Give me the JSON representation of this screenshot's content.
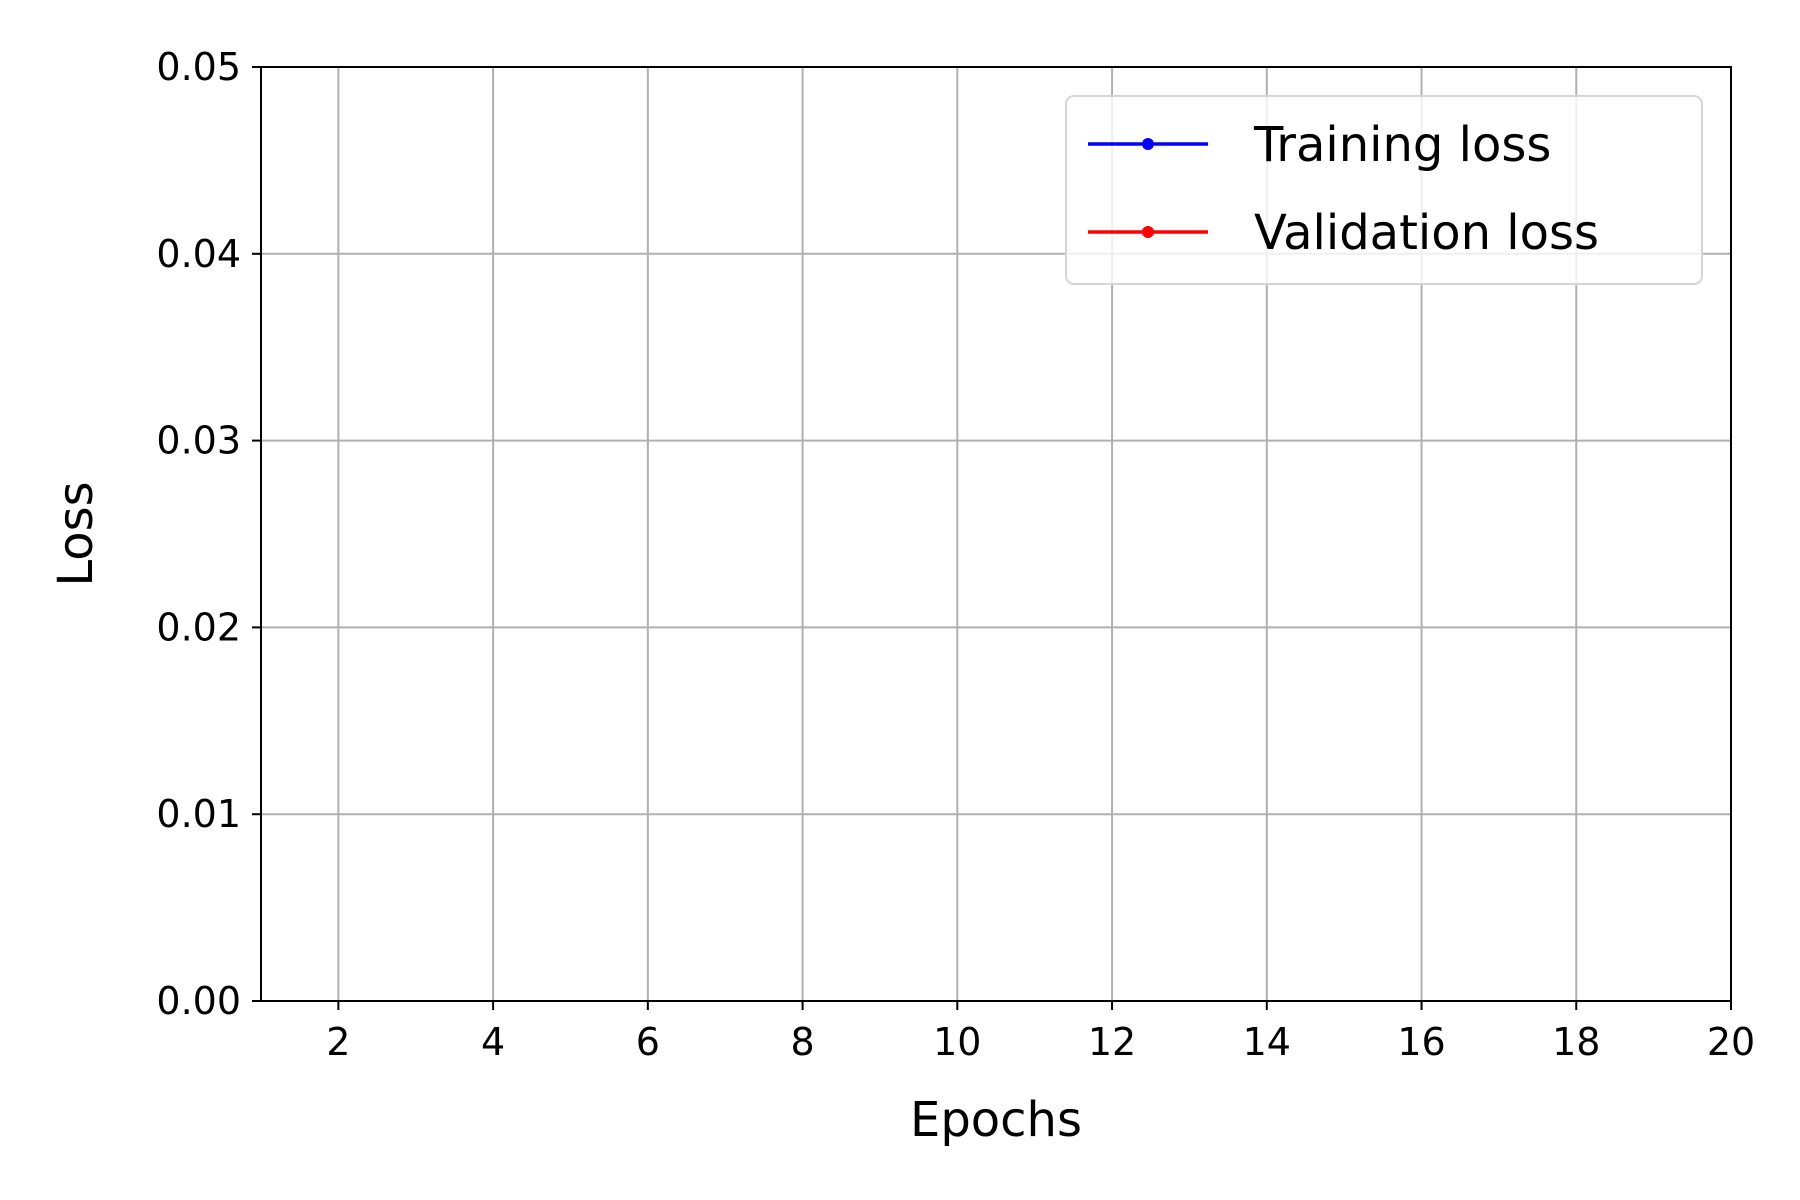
{
  "chart_data": {
    "type": "line",
    "title": "",
    "xlabel": "Epochs",
    "ylabel": "Loss",
    "xlim": [
      1,
      20
    ],
    "ylim": [
      0,
      0.05
    ],
    "x_ticks": [
      2,
      4,
      6,
      8,
      10,
      12,
      14,
      16,
      18,
      20
    ],
    "x_tick_labels": [
      "2",
      "4",
      "6",
      "8",
      "10",
      "12",
      "14",
      "16",
      "18",
      "20"
    ],
    "y_ticks": [
      0,
      0.01,
      0.02,
      0.03,
      0.04,
      0.05
    ],
    "y_tick_labels": [
      "0.00",
      "0.01",
      "0.02",
      "0.03",
      "0.04",
      "0.05"
    ],
    "grid": true,
    "legend_position": "top-right",
    "series": [
      {
        "name": "Training loss",
        "color": "#0000ff",
        "marker": "circle",
        "x": [],
        "y": []
      },
      {
        "name": "Validation loss",
        "color": "#ff0000",
        "marker": "circle",
        "x": [],
        "y": []
      }
    ]
  }
}
